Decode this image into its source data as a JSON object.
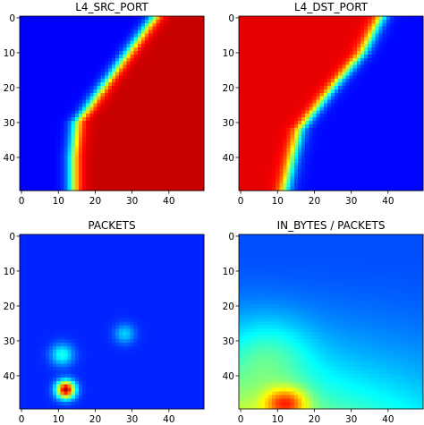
{
  "chart_data": [
    {
      "type": "heatmap",
      "title": "L4_SRC_PORT",
      "grid": [
        50,
        50
      ],
      "xticks": [
        0,
        10,
        20,
        30,
        40
      ],
      "yticks": [
        0,
        10,
        20,
        30,
        40
      ],
      "colormap": "jet",
      "pattern": {
        "kind": "boundary",
        "boundary_x_at_y": [
          [
            0,
            36
          ],
          [
            10,
            29
          ],
          [
            20,
            22
          ],
          [
            26,
            18
          ],
          [
            30,
            15
          ],
          [
            40,
            14
          ],
          [
            49,
            14
          ]
        ],
        "left_value": 0.12,
        "right_value": 0.93
      }
    },
    {
      "type": "heatmap",
      "title": "L4_DST_PORT",
      "grid": [
        50,
        50
      ],
      "xticks": [
        0,
        10,
        20,
        30,
        40
      ],
      "yticks": [
        0,
        10,
        20,
        30,
        40
      ],
      "colormap": "jet",
      "pattern": {
        "kind": "boundary",
        "boundary_x_at_y": [
          [
            0,
            38
          ],
          [
            10,
            33
          ],
          [
            20,
            25
          ],
          [
            28,
            19
          ],
          [
            32,
            16
          ],
          [
            40,
            14
          ],
          [
            49,
            12
          ]
        ],
        "left_value": 0.9,
        "right_value": 0.13
      }
    },
    {
      "type": "heatmap",
      "title": "PACKETS",
      "grid": [
        50,
        50
      ],
      "xticks": [
        0,
        10,
        20,
        30,
        40
      ],
      "yticks": [
        0,
        10,
        20,
        30,
        40
      ],
      "colormap": "jet",
      "pattern": {
        "kind": "spots",
        "background": 0.16,
        "spots": [
          {
            "x": 12,
            "y": 44,
            "value": 0.95,
            "radius": 1.8
          },
          {
            "x": 11,
            "y": 34,
            "value": 0.4,
            "radius": 2.2
          },
          {
            "x": 28,
            "y": 28,
            "value": 0.33,
            "radius": 2.0
          }
        ]
      }
    },
    {
      "type": "heatmap",
      "title": "IN_BYTES / PACKETS",
      "grid": [
        50,
        50
      ],
      "xticks": [
        0,
        10,
        20,
        30,
        40
      ],
      "yticks": [
        0,
        10,
        20,
        30,
        40
      ],
      "colormap": "jet",
      "pattern": {
        "kind": "gradient",
        "hot_spot": {
          "x": 12,
          "y": 48,
          "value": 0.85
        },
        "background": 0.2
      }
    }
  ]
}
